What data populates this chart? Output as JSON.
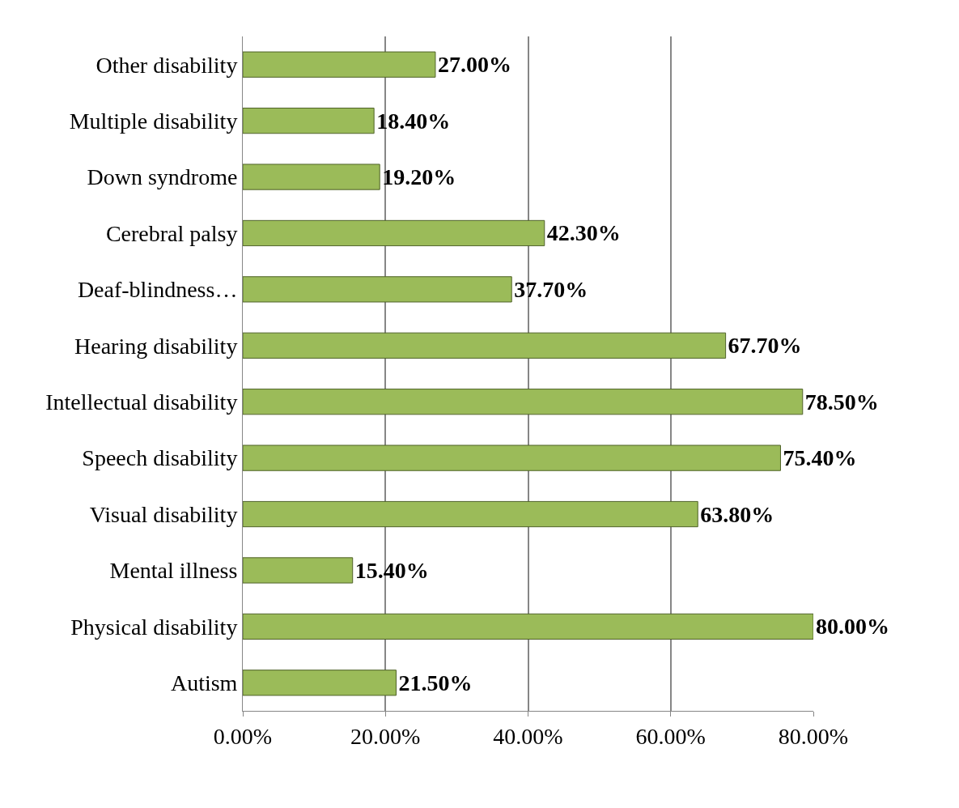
{
  "chart_data": {
    "type": "bar",
    "orientation": "horizontal",
    "categories": [
      "Other disability",
      "Multiple disability",
      "Down syndrome",
      "Cerebral palsy",
      "Deaf-blindness…",
      "Hearing disability",
      "Intellectual disability",
      "Speech disability",
      "Visual disability",
      "Mental illness",
      "Physical disability",
      "Autism"
    ],
    "values": [
      27.0,
      18.4,
      19.2,
      42.3,
      37.7,
      67.7,
      78.5,
      75.4,
      63.8,
      15.4,
      80.0,
      21.5
    ],
    "value_labels": [
      "27.00%",
      "18.40%",
      "19.20%",
      "42.30%",
      "37.70%",
      "67.70%",
      "78.50%",
      "75.40%",
      "63.80%",
      "15.40%",
      "80.00%",
      "21.50%"
    ],
    "color": "#9bbb59",
    "xlim": [
      0,
      80
    ],
    "xticks": [
      {
        "value": 0,
        "label": "0.00%"
      },
      {
        "value": 20,
        "label": "20.00%"
      },
      {
        "value": 40,
        "label": "40.00%"
      },
      {
        "value": 60,
        "label": "60.00%"
      },
      {
        "value": 80,
        "label": "80.00%"
      }
    ],
    "grid": "x"
  }
}
